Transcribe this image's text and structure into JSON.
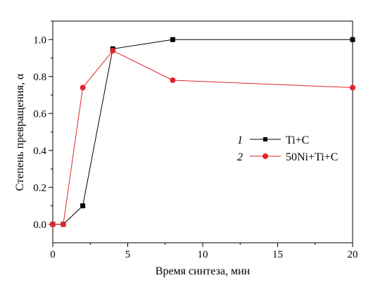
{
  "chart_data": {
    "type": "line",
    "xlabel": "Время синтеза, мин",
    "ylabel": "Степень превращения, α",
    "xlim": [
      0,
      20
    ],
    "ylim": [
      -0.1,
      1.1
    ],
    "x_ticks": [
      "0",
      "5",
      "10",
      "15",
      "20"
    ],
    "y_ticks": [
      "0.0",
      "0.2",
      "0.4",
      "0.6",
      "0.8",
      "1.0"
    ],
    "grid": false,
    "legend_position": "right",
    "series": [
      {
        "legend_number": "1",
        "name": "Ti+C",
        "color": "#000000",
        "marker": "square",
        "x": [
          0,
          0.7,
          2,
          4,
          8,
          20
        ],
        "y": [
          0.0,
          0.0,
          0.1,
          0.95,
          1.0,
          1.0
        ]
      },
      {
        "legend_number": "2",
        "name": "50Ni+Ti+C",
        "color": "#e0262a",
        "marker": "circle",
        "x": [
          0,
          0.7,
          2,
          4,
          8,
          20
        ],
        "y": [
          0.0,
          0.0,
          0.74,
          0.94,
          0.78,
          0.74
        ]
      }
    ]
  }
}
